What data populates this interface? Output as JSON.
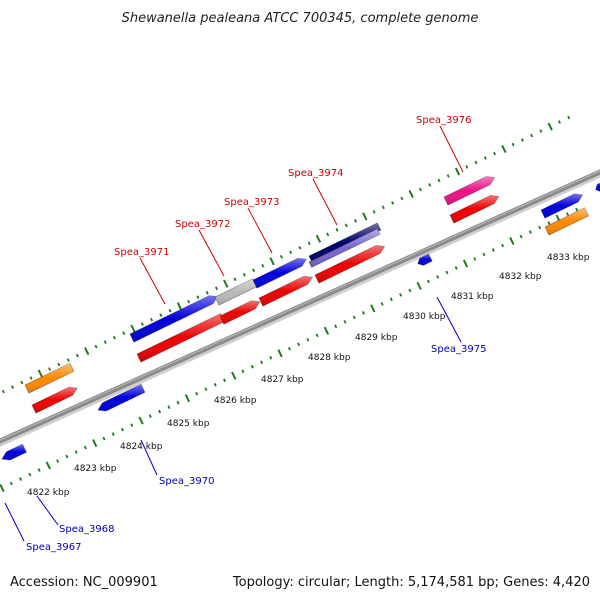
{
  "title": "Shewanella pealeana ATCC 700345, complete genome",
  "footer": {
    "accession": "Accession: NC_009901",
    "summary": "Topology: circular; Length: 5,174,581 bp; Genes: 4,420"
  },
  "colors": {
    "backbone": "#8a8a8a",
    "tick": "#1f7a1f",
    "label_red": "#cc0000",
    "label_blue": "#0000bb",
    "cds_blue": "#0000dd",
    "cds_red": "#ee0000",
    "orange": "#ff8800",
    "magenta": "#ee1188",
    "gray": "#b8b8b8",
    "navy": "#000066",
    "lavender": "#7766cc"
  },
  "ruler_labels": [
    "4822 kbp",
    "4823 kbp",
    "4824 kbp",
    "4825 kbp",
    "4826 kbp",
    "4827 kbp",
    "4828 kbp",
    "4829 kbp",
    "4830 kbp",
    "4831 kbp",
    "4832 kbp",
    "4833 kbp"
  ],
  "genes_top": [
    "Spea_3971",
    "Spea_3972",
    "Spea_3973",
    "Spea_3974",
    "Spea_3976"
  ],
  "genes_bottom": [
    "Spea_3967",
    "Spea_3968",
    "Spea_3970",
    "Spea_3975"
  ]
}
